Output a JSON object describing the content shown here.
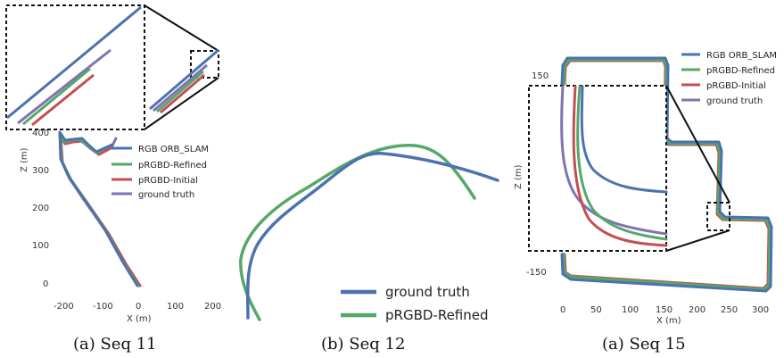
{
  "colors": {
    "orb": "#4c72b0",
    "refined": "#55a868",
    "initial": "#c44e52",
    "gt": "#8172b2"
  },
  "chart_data": [
    {
      "type": "line",
      "caption": "(a) Seq 11",
      "xlabel": "X (m)",
      "ylabel": "Z (m)",
      "xticks": [
        "-200",
        "-100",
        "0",
        "100",
        "200"
      ],
      "yticks": [
        "0",
        "100",
        "200",
        "300",
        "400"
      ],
      "legend": [
        "RGB ORB_SLAM",
        "pRGBD-Refined",
        "pRGBD-Initial",
        "ground truth"
      ],
      "series": [
        {
          "name": "ground truth",
          "x": [
            5,
            -20,
            -50,
            -90,
            -120,
            -150,
            -170,
            -185,
            -180,
            -170,
            -150,
            -140,
            -125
          ],
          "y": [
            0,
            40,
            90,
            150,
            200,
            240,
            265,
            300,
            350,
            380,
            370,
            360,
            360
          ]
        },
        {
          "name": "RGB ORB_SLAM",
          "x": [
            5,
            -22,
            -52,
            -92,
            -122,
            -152,
            -172,
            -187,
            -182,
            -172,
            -152,
            -142,
            -110
          ],
          "y": [
            0,
            40,
            90,
            150,
            200,
            240,
            265,
            300,
            350,
            385,
            375,
            360,
            375
          ]
        }
      ]
    },
    {
      "type": "line",
      "caption": "(b) Seq 12",
      "legend": [
        "ground truth",
        "pRGBD-Refined"
      ],
      "series": [
        {
          "name": "ground truth"
        },
        {
          "name": "pRGBD-Refined"
        }
      ]
    },
    {
      "type": "line",
      "caption": "(a) Seq 15",
      "xlabel": "X (m)",
      "ylabel": "Z (m)",
      "xticks": [
        "0",
        "50",
        "100",
        "150",
        "200",
        "250",
        "300"
      ],
      "yticks": [
        "150",
        "-150"
      ],
      "legend": [
        "RGB ORB_SLAM",
        "pRGBD-Refined",
        "pRGBD-Initial",
        "ground truth"
      ],
      "series": [
        {
          "name": "ground truth",
          "x": [
            0,
            0,
            5,
            160,
            160,
            235,
            240,
            320,
            320,
            0,
            0
          ],
          "y": [
            -130,
            170,
            180,
            180,
            50,
            50,
            -30,
            -30,
            -160,
            -160,
            -130
          ]
        }
      ]
    }
  ]
}
